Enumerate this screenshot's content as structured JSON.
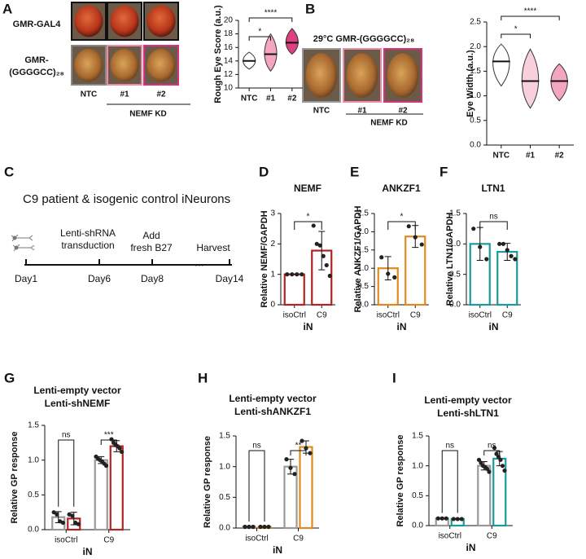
{
  "figure": {
    "panel_labels": [
      "A",
      "B",
      "C",
      "D",
      "E",
      "F",
      "G",
      "H",
      "I"
    ],
    "panel_a": {
      "row_labels": [
        [
          "GMR-GAL4"
        ],
        [
          "GMR-",
          "(GGGGCC)₂₈"
        ]
      ],
      "column_labels": [
        "NTC",
        "#1",
        "#2"
      ],
      "group_label": "NEMF KD"
    },
    "panel_b": {
      "title": "29°C  GMR-(GGGGCC)₂₈",
      "column_labels": [
        "NTC",
        "#1",
        "#2"
      ],
      "group_label": "NEMF KD"
    },
    "panel_c": {
      "title": "C9 patient & isogenic control iNeurons",
      "events": [
        [
          "Lenti-shRNA",
          "transduction"
        ],
        [
          "Add",
          "fresh B27"
        ],
        [
          "Harvest"
        ]
      ],
      "days": [
        "Day1",
        "Day6",
        "Day8",
        "···",
        "Day14"
      ]
    }
  },
  "chart_data": [
    {
      "type": "violin",
      "ylabel": "Rough Eye Score (a.u.)",
      "categories": [
        "NTC",
        "#1",
        "#2"
      ],
      "values": [
        14,
        15,
        16.7
      ],
      "mins": [
        12.8,
        12.5,
        15
      ],
      "maxs": [
        15.3,
        18,
        18.8
      ],
      "colors": [
        "#ffffff",
        "#f4a6c0",
        "#e0407f"
      ],
      "ylim": [
        10,
        20
      ],
      "yticks": [
        10,
        12,
        14,
        16,
        18,
        20
      ],
      "significance": [
        "*",
        "****"
      ]
    },
    {
      "type": "violin",
      "ylabel": "Eye Width (a.u.)",
      "categories": [
        "NTC",
        "#1",
        "#2"
      ],
      "values": [
        1.7,
        1.3,
        1.3
      ],
      "mins": [
        1.2,
        0.75,
        0.9
      ],
      "maxs": [
        2.05,
        1.95,
        1.65
      ],
      "colors": [
        "#ffffff",
        "#f8d0dc",
        "#f4a6c0"
      ],
      "ylim": [
        0,
        2.5
      ],
      "yticks": [
        {
          "value": 0,
          "label": "0.0"
        },
        0.5,
        {
          "value": 1,
          "label": "1.0"
        },
        1.5,
        {
          "value": 2,
          "label": "2.0"
        },
        2.5
      ],
      "significance": [
        "*",
        "****"
      ]
    },
    {
      "type": "bar",
      "title": "NEMF",
      "color": "#b22222",
      "ylabel": "Relative NEMF/GAPDH",
      "xlabel": "iN",
      "categories": [
        "isoCtrl",
        "C9"
      ],
      "values": [
        1,
        1.78
      ],
      "errors": [
        0,
        0.63
      ],
      "points": [
        [
          1,
          1,
          1,
          1
        ],
        [
          2.6,
          2.0,
          1.95,
          1.6,
          1.3,
          0.95
        ]
      ],
      "ylim": [
        0,
        3
      ],
      "yticks": [
        0,
        1,
        2,
        3
      ],
      "significance": [
        "*"
      ]
    },
    {
      "type": "bar",
      "title": "ANKZF1",
      "color": "#e08a1e",
      "ylabel": "Relative ANKZF1/GAPDH",
      "xlabel": "iN",
      "categories": [
        "isoCtrl",
        "C9"
      ],
      "values": [
        1.0,
        1.87
      ],
      "errors": [
        0.32,
        0.3
      ],
      "points": [
        [
          1.3,
          0.85,
          0.75
        ],
        [
          2.15,
          1.85,
          1.65
        ]
      ],
      "ylim": [
        0,
        2.5
      ],
      "yticks": [
        {
          "value": 0,
          "label": "0.0"
        },
        0.5,
        {
          "value": 1,
          "label": "1.0"
        },
        1.5,
        {
          "value": 2,
          "label": "2.0"
        },
        2.5
      ],
      "significance": [
        "*"
      ]
    },
    {
      "type": "bar",
      "title": "LTN1",
      "color": "#1a9a9a",
      "ylabel": "Relative LTN1/GAPDH",
      "xlabel": "iN",
      "categories": [
        "isoCtrl",
        "C9"
      ],
      "values": [
        1.0,
        0.87
      ],
      "errors": [
        0.27,
        0.14
      ],
      "points": [
        [
          1.25,
          0.95,
          0.75
        ],
        [
          1.0,
          1.0,
          0.9,
          0.8,
          0.75
        ]
      ],
      "ylim": [
        0,
        1.5
      ],
      "yticks": [
        {
          "value": 0,
          "label": "0.0"
        },
        0.5,
        {
          "value": 1,
          "label": "1.0"
        },
        1.5
      ],
      "significance": [
        "ns"
      ]
    },
    {
      "type": "bar",
      "ylabel": "Relative GP response",
      "xlabel": "iN",
      "categories": [
        "isoCtrl",
        "C9"
      ],
      "series": [
        {
          "name": "Lenti-empty vector",
          "label_color": "#111111",
          "color": "#999999",
          "values": [
            0.18,
            1.0
          ],
          "errors": [
            0.08,
            0.05
          ],
          "points": [
            [
              0.25,
              0.22,
              0.12,
              0.1
            ],
            [
              1.05,
              1.02,
              1.0,
              0.98,
              0.95,
              0.92
            ]
          ]
        },
        {
          "name": "Lenti-shNEMF",
          "label_color": "#b22222",
          "color": "#b22222",
          "values": [
            0.16,
            1.2
          ],
          "errors": [
            0.09,
            0.08
          ],
          "points": [
            [
              0.22,
              0.2,
              0.1,
              0.08
            ],
            [
              1.3,
              1.25,
              1.22,
              1.2,
              1.17,
              1.12
            ]
          ]
        }
      ],
      "ylim": [
        0,
        1.5
      ],
      "yticks": [
        {
          "value": 0,
          "label": "0.0"
        },
        0.5,
        {
          "value": 1,
          "label": "1.0"
        },
        1.5
      ],
      "significance": [
        "ns",
        "***"
      ]
    },
    {
      "type": "bar",
      "ylabel": "Relative GP response",
      "xlabel": "iN",
      "categories": [
        "isoCtrl",
        "C9"
      ],
      "series": [
        {
          "name": "Lenti-empty vector",
          "label_color": "#111111",
          "color": "#999999",
          "values": [
            0.02,
            1.0
          ],
          "errors": [
            0.005,
            0.12
          ],
          "points": [
            [
              0.02,
              0.02,
              0.02
            ],
            [
              1.12,
              0.98,
              0.88
            ]
          ]
        },
        {
          "name": "Lenti-shANKZF1",
          "label_color": "#e08a1e",
          "color": "#e08a1e",
          "values": [
            0.02,
            1.32
          ],
          "errors": [
            0.005,
            0.1
          ],
          "points": [
            [
              0.02,
              0.02,
              0.02
            ],
            [
              1.42,
              1.3,
              1.22
            ]
          ]
        }
      ],
      "ylim": [
        0,
        1.5
      ],
      "yticks": [
        {
          "value": 0,
          "label": "0.0"
        },
        0.5,
        {
          "value": 1,
          "label": "1.0"
        },
        1.5
      ],
      "significance": [
        "ns",
        "**"
      ]
    },
    {
      "type": "bar",
      "ylabel": "Relative GP response",
      "xlabel": "iN",
      "categories": [
        "isoCtrl",
        "C9"
      ],
      "series": [
        {
          "name": "Lenti-empty vector",
          "label_color": "#111111",
          "color": "#999999",
          "values": [
            0.12,
            1.0
          ],
          "errors": [
            0.01,
            0.07
          ],
          "points": [
            [
              0.12,
              0.12,
              0.12
            ],
            [
              1.1,
              1.05,
              1.0,
              0.98,
              0.95,
              0.9
            ]
          ]
        },
        {
          "name": "Lenti-shLTN1",
          "label_color": "#1a9a9a",
          "color": "#1a9a9a",
          "values": [
            0.11,
            1.12
          ],
          "errors": [
            0.01,
            0.12
          ],
          "points": [
            [
              0.11,
              0.11,
              0.11
            ],
            [
              1.3,
              1.2,
              1.15,
              1.1,
              1.0,
              0.92
            ]
          ]
        }
      ],
      "ylim": [
        0,
        1.5
      ],
      "yticks": [
        {
          "value": 0,
          "label": "0.0"
        },
        0.5,
        {
          "value": 1,
          "label": "1.0"
        },
        1.5
      ],
      "significance": [
        "ns",
        "ns"
      ]
    }
  ]
}
